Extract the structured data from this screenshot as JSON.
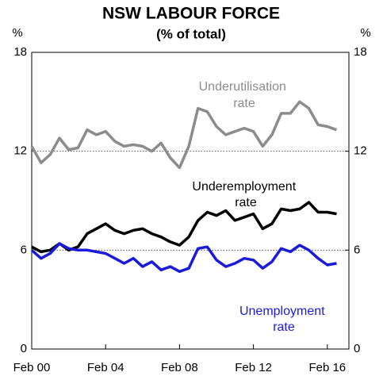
{
  "chart_data": {
    "type": "line",
    "title": "NSW LABOUR FORCE",
    "subtitle": "(% of total)",
    "y_label": "%",
    "y2_label": "%",
    "x": [
      "2000-02",
      "2000-08",
      "2001-02",
      "2001-08",
      "2002-02",
      "2002-08",
      "2003-02",
      "2003-08",
      "2004-02",
      "2004-08",
      "2005-02",
      "2005-08",
      "2006-02",
      "2006-08",
      "2007-02",
      "2007-08",
      "2008-02",
      "2008-08",
      "2009-02",
      "2009-08",
      "2010-02",
      "2010-08",
      "2011-02",
      "2011-08",
      "2012-02",
      "2012-08",
      "2013-02",
      "2013-08",
      "2014-02",
      "2014-08",
      "2015-02",
      "2015-08",
      "2016-02",
      "2016-08"
    ],
    "series": [
      {
        "name": "Underutilisation rate",
        "color": "#8c8c8c",
        "values": [
          12.3,
          11.3,
          11.8,
          12.8,
          12.1,
          12.2,
          13.3,
          13.0,
          13.2,
          12.6,
          12.3,
          12.4,
          12.3,
          12.0,
          12.5,
          11.6,
          11.0,
          12.3,
          14.6,
          14.4,
          13.5,
          13.0,
          13.2,
          13.4,
          13.2,
          12.3,
          13.0,
          14.3,
          14.3,
          15.0,
          14.6,
          13.6,
          13.5,
          13.3
        ]
      },
      {
        "name": "Underemployment rate",
        "color": "#000000",
        "values": [
          6.2,
          5.9,
          6.0,
          6.4,
          6.0,
          6.2,
          7.0,
          7.3,
          7.6,
          7.2,
          7.0,
          7.2,
          7.3,
          7.0,
          6.8,
          6.5,
          6.3,
          6.8,
          7.8,
          8.3,
          8.1,
          8.4,
          7.8,
          8.0,
          8.2,
          7.3,
          7.6,
          8.5,
          8.4,
          8.5,
          8.9,
          8.3,
          8.3,
          8.2
        ]
      },
      {
        "name": "Unemployment rate",
        "color": "#1a1adb",
        "values": [
          6.0,
          5.5,
          5.8,
          6.4,
          6.1,
          6.0,
          6.0,
          5.9,
          5.8,
          5.5,
          5.2,
          5.5,
          5.0,
          5.3,
          4.8,
          5.0,
          4.7,
          4.9,
          6.1,
          6.2,
          5.4,
          5.0,
          5.2,
          5.5,
          5.4,
          4.9,
          5.3,
          6.1,
          5.9,
          6.3,
          6.0,
          5.5,
          5.1,
          5.2
        ]
      }
    ],
    "xlim": [
      "2000-02",
      "2017-04"
    ],
    "xticks": [
      {
        "value": "2000-02",
        "label": "Feb 00"
      },
      {
        "value": "2004-02",
        "label": "Feb 04"
      },
      {
        "value": "2008-02",
        "label": "Feb 08"
      },
      {
        "value": "2012-02",
        "label": "Feb 12"
      },
      {
        "value": "2016-02",
        "label": "Feb 16"
      }
    ],
    "ylim": [
      0,
      18
    ],
    "yticks": [
      0,
      6,
      12,
      18
    ],
    "y2lim": [
      0,
      18
    ],
    "y2ticks": [
      0,
      6,
      12,
      18
    ],
    "grid": true
  }
}
